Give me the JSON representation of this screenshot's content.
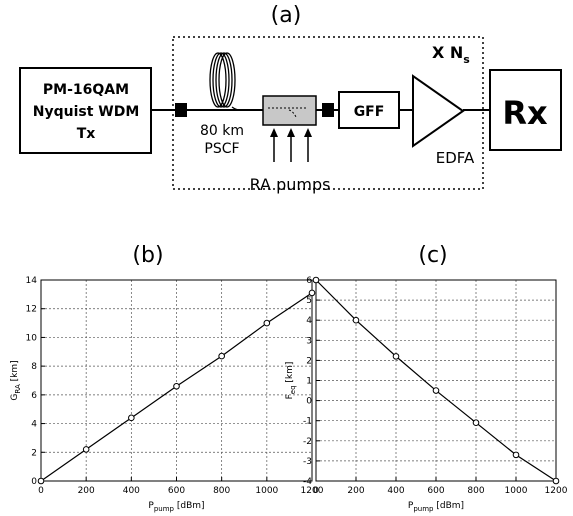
{
  "labels": {
    "panel_a": "(a)",
    "panel_b": "(b)",
    "panel_c": "(c)"
  },
  "diagram": {
    "tx_line1": "PM-16QAM",
    "tx_line2": "Nyquist WDM",
    "tx_line3": "Tx",
    "fiber_line1": "80 km",
    "fiber_line2": "PSCF",
    "gff": "GFF",
    "edfa": "EDFA",
    "rx": "Rx",
    "ra_pumps": "RA pumps",
    "repeat_prefix": "X N",
    "repeat_sub": "s"
  },
  "chart_data": [
    {
      "type": "line",
      "x": [
        0,
        200,
        400,
        600,
        800,
        1000,
        1200
      ],
      "y": [
        0,
        2.2,
        4.4,
        6.6,
        8.7,
        11.0,
        13.1
      ],
      "xlabel_main": "P",
      "xlabel_sub": "pump",
      "xlabel_unit": "[dBm]",
      "ylabel_main": "G",
      "ylabel_sub": "RA",
      "ylabel_unit": "[km]",
      "xlim": [
        0,
        1200
      ],
      "ylim": [
        0,
        14
      ],
      "xticks": [
        0,
        200,
        400,
        600,
        800,
        1000,
        1200
      ],
      "yticks": [
        0,
        2,
        4,
        6,
        8,
        10,
        12,
        14
      ],
      "grid": true,
      "marker": "circle"
    },
    {
      "type": "line",
      "x": [
        0,
        200,
        400,
        600,
        800,
        1000,
        1200
      ],
      "y": [
        6.0,
        4.0,
        2.2,
        0.5,
        -1.1,
        -2.7,
        -4.0
      ],
      "xlabel_main": "P",
      "xlabel_sub": "pump",
      "xlabel_unit": "[dBm]",
      "ylabel_main": "F",
      "ylabel_sub": "eq",
      "ylabel_unit": "[km]",
      "xlim": [
        0,
        1200
      ],
      "ylim": [
        -4,
        6
      ],
      "xticks": [
        0,
        200,
        400,
        600,
        800,
        1000,
        1200
      ],
      "yticks": [
        -4,
        -3,
        -2,
        -1,
        0,
        1,
        2,
        3,
        4,
        5,
        6
      ],
      "grid": true,
      "marker": "circle"
    }
  ]
}
